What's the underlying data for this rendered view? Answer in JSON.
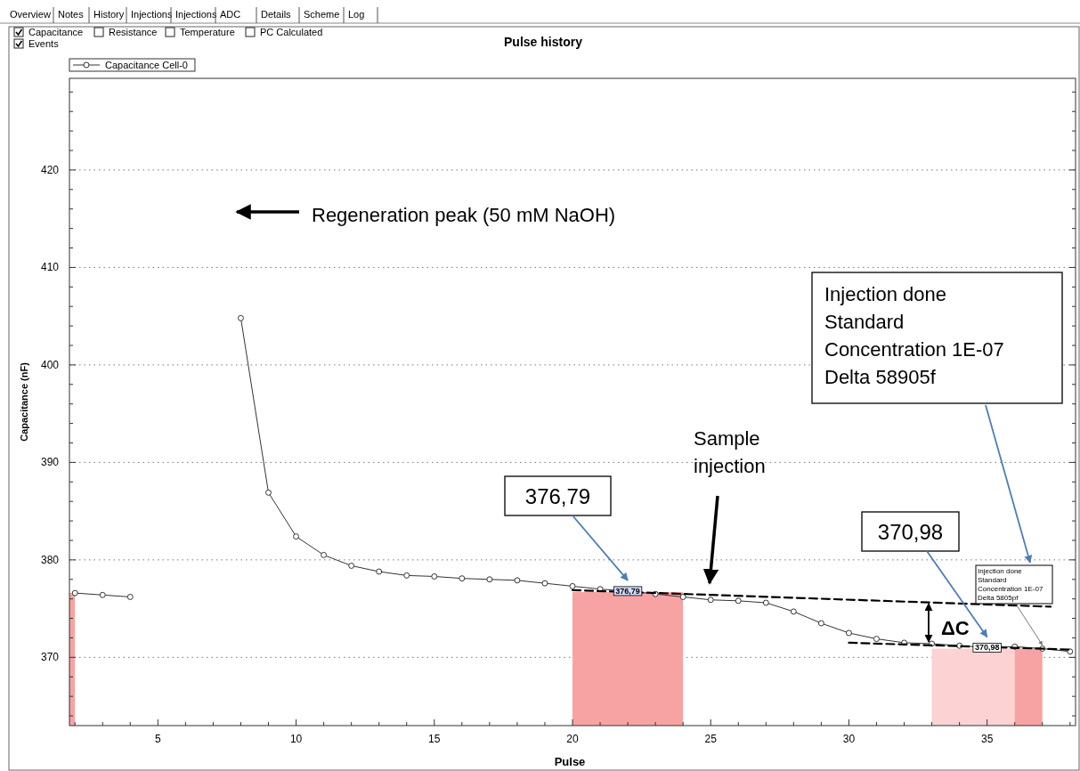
{
  "chart_data": {
    "type": "line",
    "title": "Pulse history",
    "xlabel": "Pulse",
    "ylabel": "Capacitance (nF)",
    "xlim": [
      1.8,
      38.2
    ],
    "xticks": [
      {
        "value": 2,
        "label": null
      },
      {
        "value": 3,
        "label": null
      },
      {
        "value": 4,
        "label": null
      },
      5,
      {
        "value": 6,
        "label": null
      },
      {
        "value": 7,
        "label": null
      },
      {
        "value": 8,
        "label": null
      },
      {
        "value": 9,
        "label": null
      },
      10,
      {
        "value": 11,
        "label": null
      },
      {
        "value": 12,
        "label": null
      },
      {
        "value": 13,
        "label": null
      },
      {
        "value": 14,
        "label": null
      },
      15,
      {
        "value": 16,
        "label": null
      },
      {
        "value": 17,
        "label": null
      },
      {
        "value": 18,
        "label": null
      },
      {
        "value": 19,
        "label": null
      },
      20,
      {
        "value": 21,
        "label": null
      },
      {
        "value": 22,
        "label": null
      },
      {
        "value": 23,
        "label": null
      },
      {
        "value": 24,
        "label": null
      },
      25,
      {
        "value": 26,
        "label": null
      },
      {
        "value": 27,
        "label": null
      },
      {
        "value": 28,
        "label": null
      },
      {
        "value": 29,
        "label": null
      },
      30,
      {
        "value": 31,
        "label": null
      },
      {
        "value": 32,
        "label": null
      },
      {
        "value": 33,
        "label": null
      },
      {
        "value": 34,
        "label": null
      },
      35,
      {
        "value": 36,
        "label": null
      },
      {
        "value": 37,
        "label": null
      },
      {
        "value": 38,
        "label": null
      }
    ],
    "ylim": [
      363,
      429.4
    ],
    "yticks": [
      {
        "value": 364,
        "label": null
      },
      {
        "value": 366,
        "label": null
      },
      {
        "value": 368,
        "label": null
      },
      370,
      {
        "value": 372,
        "label": null
      },
      {
        "value": 374,
        "label": null
      },
      {
        "value": 376,
        "label": null
      },
      {
        "value": 378,
        "label": null
      },
      380,
      {
        "value": 382,
        "label": null
      },
      {
        "value": 384,
        "label": null
      },
      {
        "value": 386,
        "label": null
      },
      {
        "value": 388,
        "label": null
      },
      390,
      {
        "value": 392,
        "label": null
      },
      {
        "value": 394,
        "label": null
      },
      {
        "value": 396,
        "label": null
      },
      {
        "value": 398,
        "label": null
      },
      400,
      {
        "value": 402,
        "label": null
      },
      {
        "value": 404,
        "label": null
      },
      {
        "value": 406,
        "label": null
      },
      {
        "value": 408,
        "label": null
      },
      410,
      {
        "value": 412,
        "label": null
      },
      {
        "value": 414,
        "label": null
      },
      {
        "value": 416,
        "label": null
      },
      {
        "value": 418,
        "label": null
      },
      420,
      {
        "value": 422,
        "label": null
      },
      {
        "value": 424,
        "label": null
      },
      {
        "value": 426,
        "label": null
      },
      {
        "value": 428,
        "label": null
      }
    ],
    "grid": "y",
    "legend": "top left",
    "marker": "circle",
    "line_style": "solid",
    "series": [
      {
        "type": "area",
        "color": "#f7a3a3",
        "marker": "none",
        "x": [
          1.8,
          2
        ],
        "values": [
          376.6,
          376.6
        ]
      },
      {
        "type": "area",
        "color": "#f7a3a3",
        "marker": "none",
        "x": [
          20,
          24
        ],
        "values": [
          376.7,
          376.7
        ]
      },
      {
        "type": "area",
        "color": "#fcd2d2",
        "marker": "none",
        "x": [
          33,
          36
        ],
        "values": [
          370.9,
          370.9
        ]
      },
      {
        "type": "area",
        "color": "#f7a3a3",
        "marker": "none",
        "x": [
          36,
          37
        ],
        "values": [
          370.9,
          370.9
        ]
      },
      {
        "name": "Capacitance Cell-0",
        "color": "#333333",
        "x": [
          2,
          3,
          4,
          5,
          6,
          7,
          8,
          9,
          10,
          11,
          12,
          13,
          14,
          15,
          16,
          17,
          18,
          19,
          20,
          21,
          22,
          23,
          24,
          25,
          26,
          27,
          28,
          29,
          30,
          31,
          32,
          33,
          34,
          35,
          36,
          37,
          38
        ],
        "values": [
          376.6,
          376.4,
          376.2,
          null,
          null,
          null,
          404.8,
          386.9,
          382.4,
          380.5,
          379.4,
          378.8,
          378.4,
          378.3,
          378.1,
          378.0,
          377.9,
          377.6,
          377.3,
          377.0,
          376.8,
          376.5,
          376.2,
          375.9,
          375.8,
          375.6,
          374.7,
          373.5,
          372.5,
          371.9,
          371.5,
          371.4,
          371.2,
          371.0,
          371.1,
          370.9,
          370.6
        ]
      },
      {
        "type": "line",
        "color": "#000000",
        "marker": "none",
        "line_style": "dashed",
        "x": [
          20,
          37.3
        ],
        "values": [
          376.9,
          375.2
        ]
      },
      {
        "type": "line",
        "color": "#000000",
        "marker": "none",
        "line_style": "dashed",
        "x": [
          30,
          38
        ],
        "values": [
          371.5,
          370.8
        ]
      }
    ],
    "annotations": [
      "Overview",
      "Notes",
      "History",
      "Injections",
      "Injections",
      "ADC",
      "Details",
      "Scheme",
      "Log",
      "Capacitance",
      "Resistance",
      "Temperature",
      "PC Calculated",
      "Events",
      "Regeneration peak  (50 mM NaOH)",
      "Sample injection",
      "376,79",
      {
        "text": "376,79",
        "x": 22,
        "y": 376.8
      },
      "370,98",
      {
        "text": "370,98",
        "x": 35,
        "y": 371.0
      },
      "ΔC",
      "Injection done\nStandard\nConcentration 1E-07\nDelta 58905f",
      {
        "text": "Injection done\nStandard\nConcentration 1E-07\nDelta 5805pf",
        "x": 37,
        "y": 370.9
      }
    ]
  }
}
